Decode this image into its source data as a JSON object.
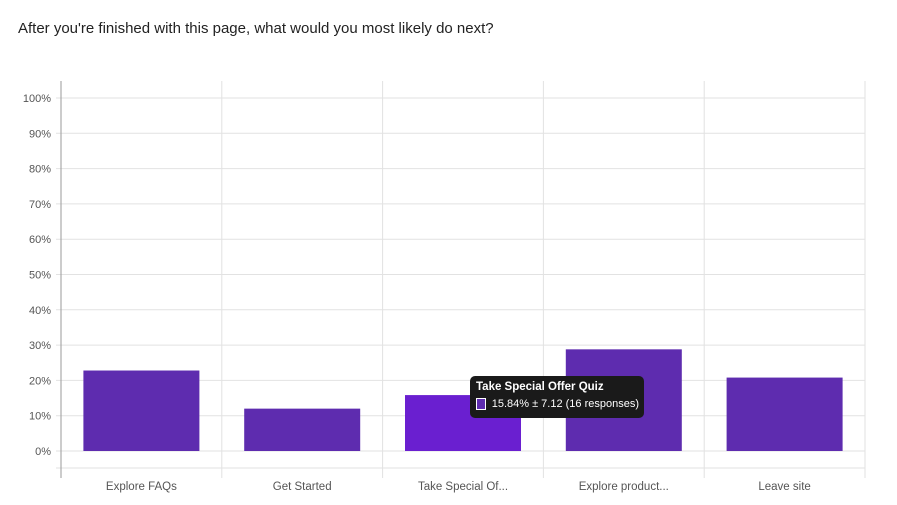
{
  "question": "After you're finished with this page, what would you most likely do next?",
  "colors": {
    "bar": "#5e2caf",
    "bar_highlight": "#6a1fd0",
    "grid": "#e2e2e2",
    "axis": "#9a9a9a",
    "tick_text": "#555555"
  },
  "chart_data": {
    "type": "bar",
    "categories": [
      "Explore FAQs",
      "Get Started",
      "Take Special Of...",
      "Explore product...",
      "Leave site"
    ],
    "values": [
      22.8,
      12.0,
      15.84,
      28.8,
      20.8
    ],
    "y_ticks": [
      "0%",
      "10%",
      "20%",
      "30%",
      "40%",
      "50%",
      "60%",
      "70%",
      "80%",
      "90%",
      "100%"
    ],
    "ylim": [
      0,
      100
    ],
    "grid": true,
    "highlighted_index": 2
  },
  "tooltip": {
    "title": "Take Special Offer Quiz",
    "text": "15.84% ± 7.12 (16 responses)"
  }
}
